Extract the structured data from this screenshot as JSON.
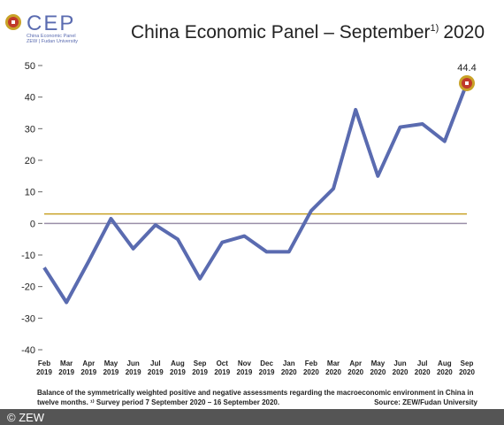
{
  "chart_data": {
    "type": "line",
    "title": "China Economic Panel – September",
    "title_note": "1)",
    "title_year": "2020",
    "logo": "CEP",
    "logo_line1": "China Economic Panel",
    "logo_line2": "ZEW | Fudan University",
    "categories": [
      "Feb 2019",
      "Mar 2019",
      "Apr 2019",
      "May 2019",
      "Jun 2019",
      "Jul 2019",
      "Aug 2019",
      "Sep 2019",
      "Oct 2019",
      "Nov 2019",
      "Dec 2019",
      "Jan 2020",
      "Feb 2020",
      "Mar 2020",
      "Apr 2020",
      "May 2020",
      "Jun 2020",
      "Jul 2020",
      "Aug 2020",
      "Sep 2020"
    ],
    "series": [
      {
        "color": "#5a6bb0",
        "values": [
          -14,
          -25,
          -12,
          1.5,
          -8,
          -0.5,
          -5,
          -17.5,
          -6,
          -4,
          -9,
          -9,
          4,
          11,
          36,
          15,
          30.5,
          31.5,
          26,
          44.4
        ]
      }
    ],
    "reference_line": {
      "value": 3,
      "color": "#c9a227"
    },
    "ylim": [
      -40,
      50
    ],
    "yticks": [
      50,
      40,
      30,
      20,
      10,
      0,
      -10,
      -20,
      -30,
      -40
    ],
    "footnote1": "Balance of the symmetrically weighted positive and negative assessments regarding the macroeconomic environment in China in",
    "footnote2": "twelve months. ¹⁾ Survey period 7 September 2020 – 16 September 2020.",
    "source": "Source: ZEW/Fudan University",
    "copyright": "© ZEW"
  }
}
